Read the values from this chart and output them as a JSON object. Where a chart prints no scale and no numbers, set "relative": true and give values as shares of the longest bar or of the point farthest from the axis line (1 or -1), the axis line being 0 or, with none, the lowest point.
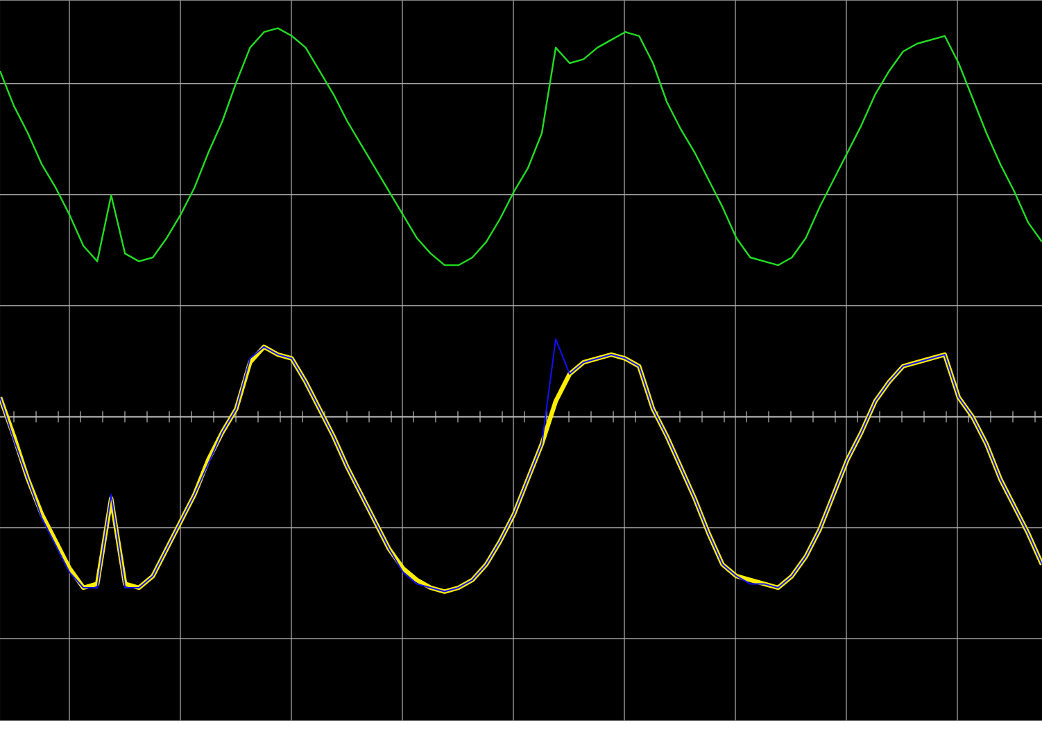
{
  "chart_data": {
    "type": "line",
    "relative": true,
    "grid": true,
    "categories": [
      null,
      null,
      null,
      null,
      null,
      null,
      null,
      null,
      null,
      null,
      null,
      null,
      null,
      null,
      null,
      null,
      null,
      null,
      null,
      null,
      null,
      null,
      null,
      null,
      null,
      null,
      null,
      null,
      null,
      null,
      null,
      null,
      null,
      null,
      null,
      null,
      null,
      null,
      null,
      null,
      null,
      null,
      null,
      null,
      null,
      null,
      null,
      null,
      null,
      null,
      null,
      null,
      null,
      null,
      null,
      null,
      null,
      null,
      null,
      null,
      null,
      null,
      null,
      null,
      null,
      null,
      null,
      null,
      null,
      null,
      null,
      null,
      null,
      null,
      null,
      null
    ],
    "series": [
      {
        "color": "#22dd22",
        "values": [
          0.89,
          0.8,
          0.73,
          0.65,
          0.59,
          0.52,
          0.44,
          0.4,
          0.57,
          0.42,
          0.4,
          0.41,
          0.46,
          0.52,
          0.59,
          0.68,
          0.76,
          0.86,
          0.95,
          0.99,
          1.0,
          0.98,
          0.95,
          0.89,
          0.83,
          0.76,
          0.7,
          0.64,
          0.58,
          0.52,
          0.46,
          0.42,
          0.39,
          0.39,
          0.41,
          0.45,
          0.51,
          0.58,
          0.64,
          0.73,
          0.95,
          0.91,
          0.92,
          0.95,
          0.97,
          0.99,
          0.98,
          0.91,
          0.81,
          0.74,
          0.68,
          0.61,
          0.54,
          0.46,
          0.41,
          0.4,
          0.39,
          0.41,
          0.46,
          0.54,
          0.61,
          0.68,
          0.75,
          0.83,
          0.89,
          0.94,
          0.96,
          0.97,
          0.98,
          0.91,
          0.82,
          0.73,
          0.65,
          0.58,
          0.5,
          0.45
        ]
      },
      {
        "color": "#ffee00",
        "values": [
          0.05,
          -0.05,
          -0.16,
          -0.25,
          -0.32,
          -0.39,
          -0.44,
          -0.43,
          -0.21,
          -0.43,
          -0.44,
          -0.41,
          -0.34,
          -0.27,
          -0.2,
          -0.11,
          -0.04,
          0.02,
          0.14,
          0.18,
          0.16,
          0.15,
          0.09,
          0.02,
          -0.05,
          -0.13,
          -0.2,
          -0.27,
          -0.34,
          -0.39,
          -0.42,
          -0.44,
          -0.45,
          -0.44,
          -0.42,
          -0.38,
          -0.32,
          -0.25,
          -0.16,
          -0.07,
          0.04,
          0.11,
          0.14,
          0.15,
          0.16,
          0.15,
          0.13,
          0.02,
          -0.05,
          -0.13,
          -0.21,
          -0.3,
          -0.38,
          -0.41,
          -0.42,
          -0.43,
          -0.44,
          -0.41,
          -0.36,
          -0.29,
          -0.2,
          -0.11,
          -0.04,
          0.04,
          0.09,
          0.13,
          0.14,
          0.15,
          0.16,
          0.05,
          0.0,
          -0.07,
          -0.16,
          -0.23,
          -0.3,
          -0.38
        ]
      },
      {
        "color": "#1010ff",
        "values": [
          0.05,
          -0.06,
          -0.16,
          -0.26,
          -0.33,
          -0.4,
          -0.44,
          -0.44,
          -0.2,
          -0.44,
          -0.44,
          -0.41,
          -0.34,
          -0.27,
          -0.2,
          -0.12,
          -0.04,
          0.02,
          0.15,
          0.18,
          0.16,
          0.15,
          0.09,
          0.02,
          -0.05,
          -0.13,
          -0.2,
          -0.27,
          -0.34,
          -0.4,
          -0.43,
          -0.44,
          -0.45,
          -0.44,
          -0.42,
          -0.38,
          -0.32,
          -0.25,
          -0.16,
          -0.07,
          0.2,
          0.11,
          0.14,
          0.15,
          0.16,
          0.15,
          0.13,
          0.02,
          -0.05,
          -0.13,
          -0.21,
          -0.3,
          -0.38,
          -0.41,
          -0.43,
          -0.43,
          -0.44,
          -0.41,
          -0.36,
          -0.29,
          -0.2,
          -0.11,
          -0.04,
          0.04,
          0.09,
          0.13,
          0.14,
          0.15,
          0.16,
          0.05,
          0.0,
          -0.07,
          -0.16,
          -0.23,
          -0.3,
          -0.38
        ]
      }
    ]
  }
}
